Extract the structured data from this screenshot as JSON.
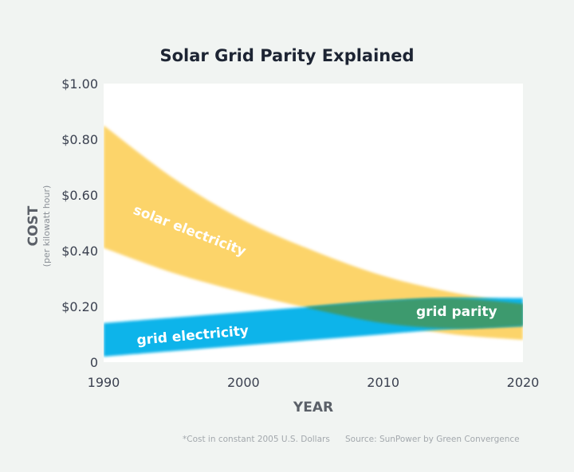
{
  "chart_data": {
    "type": "area",
    "title": "Solar Grid Parity Explained",
    "xlabel": "YEAR",
    "ylabel": "COST",
    "ylabel_sub": "(per kilowatt hour)",
    "x_ticks": [
      "1990",
      "2000",
      "2010",
      "2020"
    ],
    "y_ticks": [
      "$1.00",
      "$0.80",
      "$0.60",
      "$0.40",
      "$0.20",
      "0"
    ],
    "xlim": [
      1990,
      2020
    ],
    "ylim": [
      0,
      1.0
    ],
    "grid": false,
    "x": [
      1990,
      1995,
      2000,
      2005,
      2010,
      2015,
      2020
    ],
    "series": [
      {
        "name": "solar electricity",
        "upper": [
          0.85,
          0.66,
          0.51,
          0.4,
          0.31,
          0.25,
          0.21
        ],
        "lower": [
          0.41,
          0.32,
          0.25,
          0.19,
          0.14,
          0.1,
          0.08
        ]
      },
      {
        "name": "grid electricity",
        "upper": [
          0.14,
          0.16,
          0.18,
          0.2,
          0.22,
          0.23,
          0.23
        ],
        "lower": [
          0.02,
          0.04,
          0.06,
          0.08,
          0.1,
          0.12,
          0.13
        ]
      }
    ],
    "annotations": [
      {
        "text": "grid parity"
      }
    ],
    "colors": {
      "solar": "#fcd46a",
      "grid": "#0bb4ea",
      "parity": "#3e9a6e",
      "plot_bg": "#ffffff",
      "page_bg": "#f1f4f2"
    }
  },
  "footnote": {
    "note": "*Cost in constant 2005 U.S. Dollars",
    "source": "Source: SunPower by Green Convergence"
  }
}
